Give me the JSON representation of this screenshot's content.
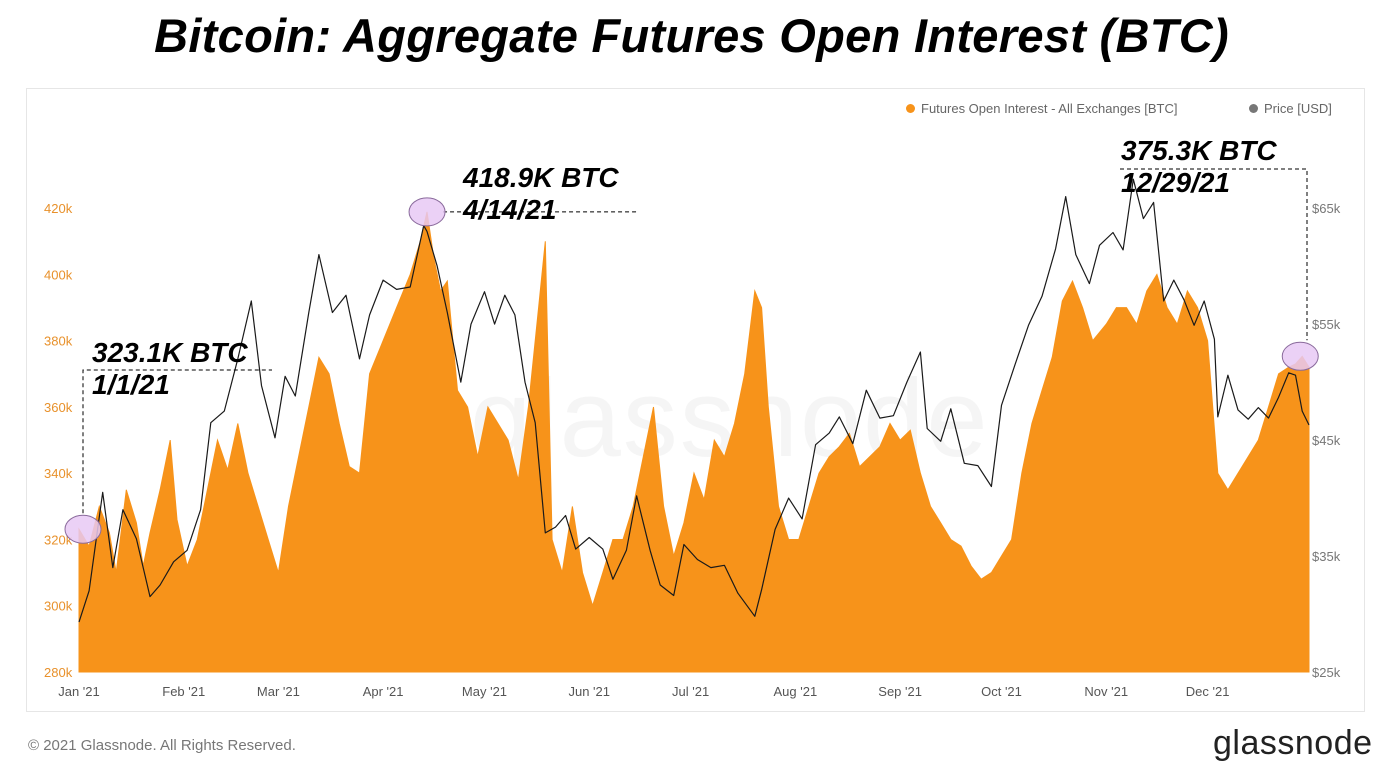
{
  "title": "Bitcoin: Aggregate Futures Open Interest (BTC)",
  "legend": {
    "series_oi": "Futures Open Interest - All Exchanges [BTC]",
    "series_price": "Price [USD]"
  },
  "colors": {
    "oi": "#f7931a",
    "price": "#1a1a1a",
    "marker": "#e7c9f5",
    "left_axis": "#e8912b",
    "right_axis": "#777777"
  },
  "annotations": [
    {
      "value": "323.1K BTC",
      "date": "1/1/21"
    },
    {
      "value": "418.9K BTC",
      "date": "4/14/21"
    },
    {
      "value": "375.3K BTC",
      "date": "12/29/21"
    }
  ],
  "footer": "© 2021 Glassnode. All Rights Reserved.",
  "logo": "glassnode",
  "watermark": "glassnode",
  "chart_data": {
    "type": "area",
    "x_axis": {
      "labels": [
        "Jan '21",
        "Feb '21",
        "Mar '21",
        "Apr '21",
        "May '21",
        "Jun '21",
        "Jul '21",
        "Aug '21",
        "Sep '21",
        "Oct '21",
        "Nov '21",
        "Dec '21"
      ],
      "range": [
        "2021-01-01",
        "2021-12-31"
      ]
    },
    "y_left": {
      "ticks": [
        "280k",
        "300k",
        "320k",
        "340k",
        "360k",
        "380k",
        "400k",
        "420k"
      ],
      "range": [
        280000,
        427000
      ]
    },
    "y_right": {
      "ticks": [
        "$25k",
        "$35k",
        "$45k",
        "$55k",
        "$65k"
      ],
      "range": [
        25000,
        67000
      ]
    },
    "series": [
      {
        "name": "Futures Open Interest - All Exchanges [BTC]",
        "axis": "left",
        "points": [
          [
            "2021-01-01",
            323100
          ],
          [
            "2021-01-04",
            318000
          ],
          [
            "2021-01-07",
            330000
          ],
          [
            "2021-01-10",
            322000
          ],
          [
            "2021-01-12",
            310000
          ],
          [
            "2021-01-15",
            335000
          ],
          [
            "2021-01-18",
            325000
          ],
          [
            "2021-01-20",
            312000
          ],
          [
            "2021-01-22",
            322000
          ],
          [
            "2021-01-25",
            335000
          ],
          [
            "2021-01-28",
            350000
          ],
          [
            "2021-01-30",
            326000
          ],
          [
            "2021-02-02",
            312000
          ],
          [
            "2021-02-05",
            320000
          ],
          [
            "2021-02-08",
            335000
          ],
          [
            "2021-02-11",
            350000
          ],
          [
            "2021-02-14",
            341000
          ],
          [
            "2021-02-17",
            355000
          ],
          [
            "2021-02-20",
            340000
          ],
          [
            "2021-02-23",
            330000
          ],
          [
            "2021-02-26",
            320000
          ],
          [
            "2021-03-01",
            310000
          ],
          [
            "2021-03-04",
            330000
          ],
          [
            "2021-03-07",
            345000
          ],
          [
            "2021-03-10",
            360000
          ],
          [
            "2021-03-13",
            375000
          ],
          [
            "2021-03-16",
            370000
          ],
          [
            "2021-03-19",
            355000
          ],
          [
            "2021-03-22",
            342000
          ],
          [
            "2021-03-25",
            340000
          ],
          [
            "2021-03-28",
            370000
          ],
          [
            "2021-04-01",
            380000
          ],
          [
            "2021-04-05",
            390000
          ],
          [
            "2021-04-09",
            400000
          ],
          [
            "2021-04-12",
            410000
          ],
          [
            "2021-04-14",
            418900
          ],
          [
            "2021-04-16",
            405000
          ],
          [
            "2021-04-18",
            395000
          ],
          [
            "2021-04-20",
            398000
          ],
          [
            "2021-04-23",
            365000
          ],
          [
            "2021-04-26",
            360000
          ],
          [
            "2021-04-29",
            345000
          ],
          [
            "2021-05-02",
            360000
          ],
          [
            "2021-05-05",
            355000
          ],
          [
            "2021-05-08",
            350000
          ],
          [
            "2021-05-11",
            338000
          ],
          [
            "2021-05-14",
            360000
          ],
          [
            "2021-05-17",
            390000
          ],
          [
            "2021-05-19",
            410000
          ],
          [
            "2021-05-21",
            320000
          ],
          [
            "2021-05-24",
            310000
          ],
          [
            "2021-05-27",
            330000
          ],
          [
            "2021-05-30",
            310000
          ],
          [
            "2021-06-02",
            300000
          ],
          [
            "2021-06-05",
            310000
          ],
          [
            "2021-06-08",
            320000
          ],
          [
            "2021-06-11",
            320000
          ],
          [
            "2021-06-14",
            330000
          ],
          [
            "2021-06-17",
            345000
          ],
          [
            "2021-06-20",
            360000
          ],
          [
            "2021-06-23",
            330000
          ],
          [
            "2021-06-26",
            315000
          ],
          [
            "2021-06-29",
            325000
          ],
          [
            "2021-07-02",
            340000
          ],
          [
            "2021-07-05",
            332000
          ],
          [
            "2021-07-08",
            350000
          ],
          [
            "2021-07-11",
            345000
          ],
          [
            "2021-07-14",
            355000
          ],
          [
            "2021-07-17",
            370000
          ],
          [
            "2021-07-20",
            395000
          ],
          [
            "2021-07-22",
            390000
          ],
          [
            "2021-07-24",
            360000
          ],
          [
            "2021-07-27",
            330000
          ],
          [
            "2021-07-30",
            320000
          ],
          [
            "2021-08-02",
            320000
          ],
          [
            "2021-08-05",
            330000
          ],
          [
            "2021-08-08",
            340000
          ],
          [
            "2021-08-11",
            345000
          ],
          [
            "2021-08-14",
            348000
          ],
          [
            "2021-08-17",
            352000
          ],
          [
            "2021-08-20",
            342000
          ],
          [
            "2021-08-23",
            345000
          ],
          [
            "2021-08-26",
            348000
          ],
          [
            "2021-08-29",
            355000
          ],
          [
            "2021-09-01",
            350000
          ],
          [
            "2021-09-04",
            353000
          ],
          [
            "2021-09-07",
            340000
          ],
          [
            "2021-09-10",
            330000
          ],
          [
            "2021-09-13",
            325000
          ],
          [
            "2021-09-16",
            320000
          ],
          [
            "2021-09-19",
            318000
          ],
          [
            "2021-09-22",
            312000
          ],
          [
            "2021-09-25",
            308000
          ],
          [
            "2021-09-28",
            310000
          ],
          [
            "2021-10-01",
            315000
          ],
          [
            "2021-10-04",
            320000
          ],
          [
            "2021-10-07",
            340000
          ],
          [
            "2021-10-10",
            355000
          ],
          [
            "2021-10-13",
            365000
          ],
          [
            "2021-10-16",
            375000
          ],
          [
            "2021-10-19",
            392000
          ],
          [
            "2021-10-22",
            398000
          ],
          [
            "2021-10-25",
            390000
          ],
          [
            "2021-10-28",
            380000
          ],
          [
            "2021-11-01",
            385000
          ],
          [
            "2021-11-04",
            390000
          ],
          [
            "2021-11-07",
            390000
          ],
          [
            "2021-11-10",
            385000
          ],
          [
            "2021-11-13",
            395000
          ],
          [
            "2021-11-16",
            400000
          ],
          [
            "2021-11-19",
            390000
          ],
          [
            "2021-11-22",
            385000
          ],
          [
            "2021-11-25",
            395000
          ],
          [
            "2021-11-28",
            390000
          ],
          [
            "2021-12-01",
            380000
          ],
          [
            "2021-12-04",
            340000
          ],
          [
            "2021-12-07",
            335000
          ],
          [
            "2021-12-10",
            340000
          ],
          [
            "2021-12-13",
            345000
          ],
          [
            "2021-12-16",
            350000
          ],
          [
            "2021-12-19",
            360000
          ],
          [
            "2021-12-22",
            370000
          ],
          [
            "2021-12-25",
            372000
          ],
          [
            "2021-12-27",
            373000
          ],
          [
            "2021-12-29",
            375300
          ],
          [
            "2021-12-31",
            372000
          ]
        ]
      },
      {
        "name": "Price [USD]",
        "axis": "right",
        "points": [
          [
            "2021-01-01",
            29300
          ],
          [
            "2021-01-04",
            32000
          ],
          [
            "2021-01-08",
            40500
          ],
          [
            "2021-01-11",
            34000
          ],
          [
            "2021-01-14",
            39000
          ],
          [
            "2021-01-18",
            36500
          ],
          [
            "2021-01-22",
            31500
          ],
          [
            "2021-01-25",
            32500
          ],
          [
            "2021-01-29",
            34500
          ],
          [
            "2021-02-02",
            35500
          ],
          [
            "2021-02-06",
            39000
          ],
          [
            "2021-02-09",
            46500
          ],
          [
            "2021-02-13",
            47500
          ],
          [
            "2021-02-17",
            52000
          ],
          [
            "2021-02-21",
            57000
          ],
          [
            "2021-02-24",
            49700
          ],
          [
            "2021-02-28",
            45200
          ],
          [
            "2021-03-03",
            50500
          ],
          [
            "2021-03-06",
            48800
          ],
          [
            "2021-03-10",
            56000
          ],
          [
            "2021-03-13",
            61000
          ],
          [
            "2021-03-17",
            56000
          ],
          [
            "2021-03-21",
            57500
          ],
          [
            "2021-03-25",
            52000
          ],
          [
            "2021-03-28",
            55800
          ],
          [
            "2021-04-01",
            58800
          ],
          [
            "2021-04-05",
            58000
          ],
          [
            "2021-04-09",
            58200
          ],
          [
            "2021-04-13",
            63500
          ],
          [
            "2021-04-14",
            63000
          ],
          [
            "2021-04-17",
            60000
          ],
          [
            "2021-04-20",
            56000
          ],
          [
            "2021-04-24",
            50000
          ],
          [
            "2021-04-27",
            55000
          ],
          [
            "2021-05-01",
            57800
          ],
          [
            "2021-05-04",
            55000
          ],
          [
            "2021-05-07",
            57500
          ],
          [
            "2021-05-10",
            55800
          ],
          [
            "2021-05-13",
            50000
          ],
          [
            "2021-05-16",
            46500
          ],
          [
            "2021-05-19",
            37000
          ],
          [
            "2021-05-22",
            37500
          ],
          [
            "2021-05-25",
            38500
          ],
          [
            "2021-05-28",
            35600
          ],
          [
            "2021-06-01",
            36600
          ],
          [
            "2021-06-05",
            35600
          ],
          [
            "2021-06-08",
            33000
          ],
          [
            "2021-06-12",
            35500
          ],
          [
            "2021-06-15",
            40200
          ],
          [
            "2021-06-19",
            35500
          ],
          [
            "2021-06-22",
            32500
          ],
          [
            "2021-06-26",
            31600
          ],
          [
            "2021-06-29",
            36000
          ],
          [
            "2021-07-03",
            34700
          ],
          [
            "2021-07-07",
            34000
          ],
          [
            "2021-07-11",
            34200
          ],
          [
            "2021-07-15",
            31800
          ],
          [
            "2021-07-20",
            29800
          ],
          [
            "2021-07-22",
            32100
          ],
          [
            "2021-07-26",
            37300
          ],
          [
            "2021-07-30",
            40000
          ],
          [
            "2021-08-03",
            38200
          ],
          [
            "2021-08-07",
            44600
          ],
          [
            "2021-08-11",
            45600
          ],
          [
            "2021-08-14",
            47000
          ],
          [
            "2021-08-18",
            44700
          ],
          [
            "2021-08-22",
            49300
          ],
          [
            "2021-08-26",
            46900
          ],
          [
            "2021-08-30",
            47100
          ],
          [
            "2021-09-03",
            50000
          ],
          [
            "2021-09-07",
            52600
          ],
          [
            "2021-09-09",
            46000
          ],
          [
            "2021-09-13",
            44900
          ],
          [
            "2021-09-16",
            47700
          ],
          [
            "2021-09-20",
            43000
          ],
          [
            "2021-09-24",
            42800
          ],
          [
            "2021-09-28",
            41000
          ],
          [
            "2021-10-01",
            48000
          ],
          [
            "2021-10-05",
            51500
          ],
          [
            "2021-10-09",
            54900
          ],
          [
            "2021-10-13",
            57400
          ],
          [
            "2021-10-17",
            61500
          ],
          [
            "2021-10-20",
            66000
          ],
          [
            "2021-10-23",
            61000
          ],
          [
            "2021-10-27",
            58500
          ],
          [
            "2021-10-30",
            61800
          ],
          [
            "2021-11-03",
            62900
          ],
          [
            "2021-11-06",
            61400
          ],
          [
            "2021-11-09",
            67500
          ],
          [
            "2021-11-12",
            64100
          ],
          [
            "2021-11-15",
            65500
          ],
          [
            "2021-11-18",
            57000
          ],
          [
            "2021-11-21",
            58800
          ],
          [
            "2021-11-24",
            57100
          ],
          [
            "2021-11-27",
            54900
          ],
          [
            "2021-11-30",
            57000
          ],
          [
            "2021-12-03",
            53700
          ],
          [
            "2021-12-04",
            47000
          ],
          [
            "2021-12-07",
            50600
          ],
          [
            "2021-12-10",
            47600
          ],
          [
            "2021-12-13",
            46800
          ],
          [
            "2021-12-16",
            47800
          ],
          [
            "2021-12-19",
            46900
          ],
          [
            "2021-12-22",
            48700
          ],
          [
            "2021-12-25",
            50800
          ],
          [
            "2021-12-27",
            50600
          ],
          [
            "2021-12-29",
            47500
          ],
          [
            "2021-12-31",
            46300
          ]
        ]
      }
    ],
    "legend_position": "top-right",
    "grid": false
  }
}
